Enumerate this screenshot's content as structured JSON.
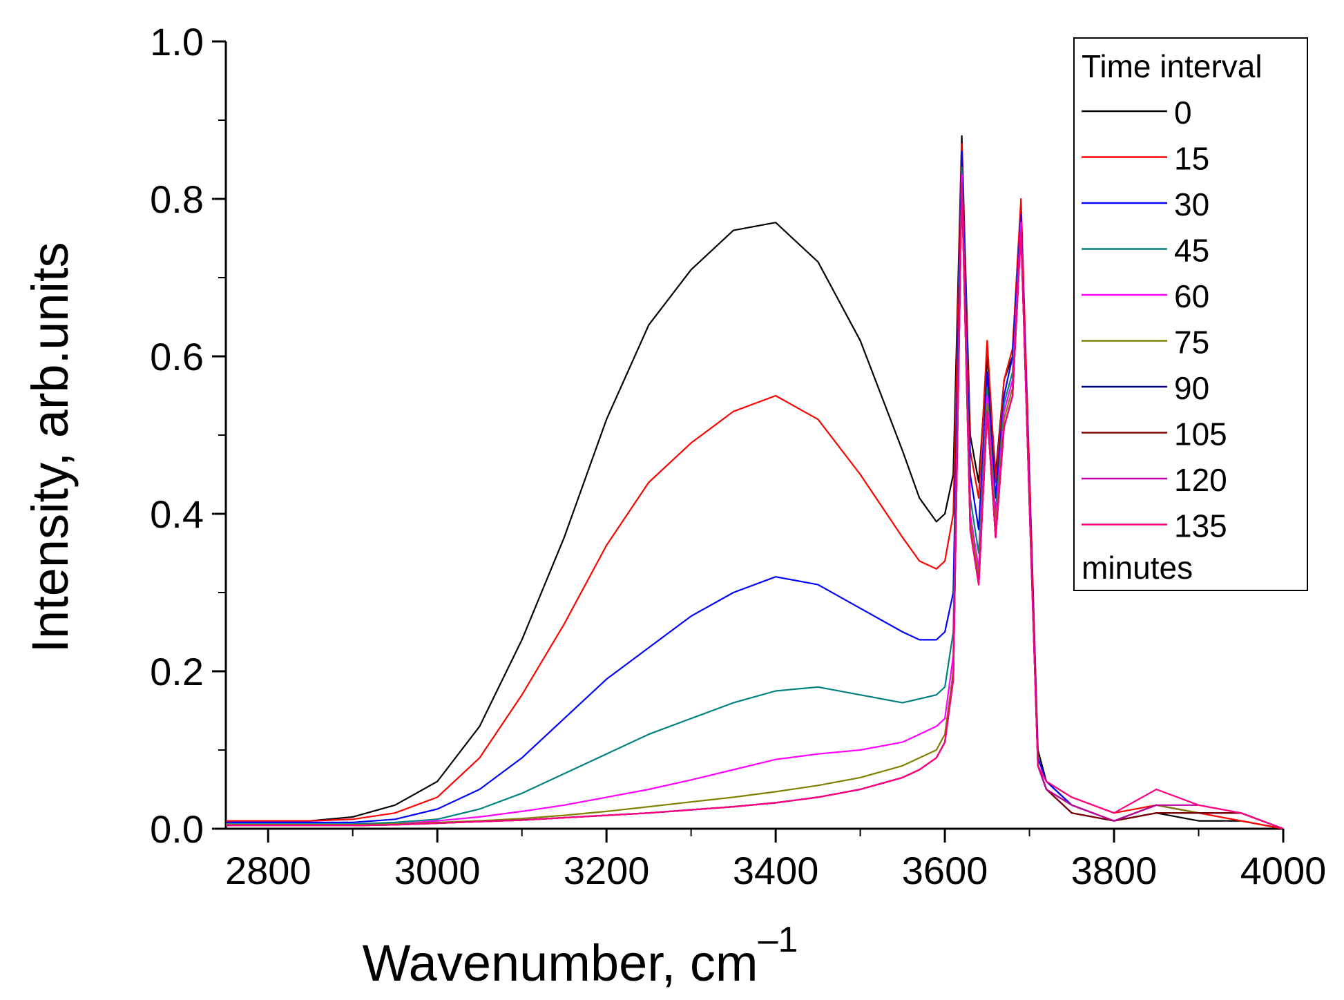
{
  "chart_data": {
    "type": "line",
    "title": "",
    "xlabel": "Wavenumber, cm",
    "xlabel_superscript": "–1",
    "ylabel": "Intensity, arb.units",
    "xlim": [
      2750,
      4000
    ],
    "ylim": [
      0.0,
      1.0
    ],
    "x_ticks": [
      2800,
      3000,
      3200,
      3400,
      3600,
      3800,
      4000
    ],
    "y_ticks": [
      "0.0",
      "0.2",
      "0.4",
      "0.6",
      "0.8",
      "1.0"
    ],
    "grid": false,
    "legend": {
      "position": "top-right",
      "title": "Time interval",
      "footer": "minutes"
    },
    "x": [
      2750,
      2800,
      2850,
      2900,
      2950,
      3000,
      3050,
      3100,
      3150,
      3200,
      3250,
      3300,
      3350,
      3400,
      3450,
      3500,
      3550,
      3570,
      3590,
      3600,
      3610,
      3620,
      3630,
      3640,
      3650,
      3660,
      3670,
      3680,
      3690,
      3700,
      3710,
      3720,
      3750,
      3800,
      3850,
      3900,
      3950,
      4000
    ],
    "series": [
      {
        "name": "0",
        "color": "#000000",
        "values": [
          0.01,
          0.01,
          0.01,
          0.015,
          0.03,
          0.06,
          0.13,
          0.24,
          0.37,
          0.52,
          0.64,
          0.71,
          0.76,
          0.77,
          0.72,
          0.62,
          0.48,
          0.42,
          0.39,
          0.4,
          0.45,
          0.88,
          0.5,
          0.44,
          0.6,
          0.45,
          0.57,
          0.6,
          0.77,
          0.45,
          0.1,
          0.06,
          0.03,
          0.01,
          0.02,
          0.01,
          0.01,
          0.0
        ]
      },
      {
        "name": "15",
        "color": "#ff0000",
        "values": [
          0.01,
          0.01,
          0.01,
          0.012,
          0.02,
          0.04,
          0.09,
          0.17,
          0.26,
          0.36,
          0.44,
          0.49,
          0.53,
          0.55,
          0.52,
          0.45,
          0.37,
          0.34,
          0.33,
          0.34,
          0.4,
          0.87,
          0.48,
          0.42,
          0.62,
          0.44,
          0.57,
          0.61,
          0.8,
          0.45,
          0.09,
          0.06,
          0.04,
          0.02,
          0.03,
          0.02,
          0.01,
          0.0
        ]
      },
      {
        "name": "30",
        "color": "#0000ff",
        "values": [
          0.008,
          0.008,
          0.008,
          0.008,
          0.012,
          0.025,
          0.05,
          0.09,
          0.14,
          0.19,
          0.23,
          0.27,
          0.3,
          0.32,
          0.31,
          0.28,
          0.25,
          0.24,
          0.24,
          0.25,
          0.3,
          0.86,
          0.45,
          0.38,
          0.58,
          0.42,
          0.55,
          0.6,
          0.78,
          0.43,
          0.09,
          0.06,
          0.03,
          0.01,
          0.03,
          0.02,
          0.02,
          0.0
        ]
      },
      {
        "name": "45",
        "color": "#008080",
        "values": [
          0.006,
          0.006,
          0.006,
          0.006,
          0.008,
          0.012,
          0.025,
          0.045,
          0.07,
          0.095,
          0.12,
          0.14,
          0.16,
          0.175,
          0.18,
          0.17,
          0.16,
          0.165,
          0.17,
          0.18,
          0.25,
          0.84,
          0.42,
          0.35,
          0.56,
          0.4,
          0.54,
          0.58,
          0.77,
          0.42,
          0.08,
          0.05,
          0.03,
          0.01,
          0.03,
          0.02,
          0.02,
          0.0
        ]
      },
      {
        "name": "60",
        "color": "#ff00ff",
        "values": [
          0.005,
          0.005,
          0.005,
          0.005,
          0.006,
          0.01,
          0.015,
          0.022,
          0.03,
          0.04,
          0.05,
          0.062,
          0.075,
          0.088,
          0.095,
          0.1,
          0.11,
          0.12,
          0.13,
          0.14,
          0.22,
          0.83,
          0.4,
          0.33,
          0.55,
          0.39,
          0.53,
          0.57,
          0.77,
          0.42,
          0.08,
          0.05,
          0.03,
          0.01,
          0.03,
          0.02,
          0.02,
          0.0
        ]
      },
      {
        "name": "75",
        "color": "#808000",
        "values": [
          0.005,
          0.005,
          0.005,
          0.005,
          0.006,
          0.008,
          0.01,
          0.013,
          0.017,
          0.022,
          0.028,
          0.034,
          0.04,
          0.047,
          0.055,
          0.065,
          0.08,
          0.09,
          0.1,
          0.12,
          0.2,
          0.82,
          0.39,
          0.32,
          0.54,
          0.38,
          0.52,
          0.56,
          0.76,
          0.41,
          0.08,
          0.05,
          0.03,
          0.01,
          0.03,
          0.02,
          0.02,
          0.0
        ]
      },
      {
        "name": "90",
        "color": "#000080",
        "values": [
          0.004,
          0.004,
          0.004,
          0.004,
          0.005,
          0.007,
          0.009,
          0.011,
          0.014,
          0.017,
          0.02,
          0.024,
          0.028,
          0.033,
          0.04,
          0.05,
          0.065,
          0.075,
          0.09,
          0.11,
          0.19,
          0.82,
          0.38,
          0.31,
          0.53,
          0.37,
          0.51,
          0.55,
          0.76,
          0.41,
          0.08,
          0.05,
          0.02,
          0.01,
          0.02,
          0.02,
          0.02,
          0.0
        ]
      },
      {
        "name": "105",
        "color": "#800000",
        "values": [
          0.004,
          0.004,
          0.004,
          0.004,
          0.005,
          0.007,
          0.009,
          0.011,
          0.014,
          0.017,
          0.02,
          0.024,
          0.028,
          0.033,
          0.04,
          0.05,
          0.065,
          0.075,
          0.09,
          0.11,
          0.19,
          0.82,
          0.38,
          0.31,
          0.53,
          0.37,
          0.51,
          0.55,
          0.76,
          0.41,
          0.08,
          0.05,
          0.02,
          0.01,
          0.02,
          0.02,
          0.02,
          0.0
        ]
      },
      {
        "name": "120",
        "color": "#c000a0",
        "values": [
          0.004,
          0.004,
          0.004,
          0.004,
          0.005,
          0.007,
          0.009,
          0.011,
          0.014,
          0.017,
          0.02,
          0.024,
          0.028,
          0.033,
          0.04,
          0.05,
          0.065,
          0.075,
          0.09,
          0.11,
          0.19,
          0.82,
          0.38,
          0.31,
          0.53,
          0.37,
          0.51,
          0.55,
          0.76,
          0.41,
          0.08,
          0.05,
          0.03,
          0.01,
          0.03,
          0.03,
          0.02,
          0.0
        ]
      },
      {
        "name": "135",
        "color": "#ff0080",
        "values": [
          0.004,
          0.004,
          0.004,
          0.004,
          0.005,
          0.007,
          0.009,
          0.011,
          0.014,
          0.017,
          0.02,
          0.024,
          0.028,
          0.033,
          0.04,
          0.05,
          0.065,
          0.075,
          0.09,
          0.11,
          0.19,
          0.82,
          0.38,
          0.31,
          0.53,
          0.37,
          0.51,
          0.55,
          0.76,
          0.41,
          0.08,
          0.06,
          0.04,
          0.02,
          0.05,
          0.03,
          0.02,
          0.0
        ]
      }
    ]
  }
}
